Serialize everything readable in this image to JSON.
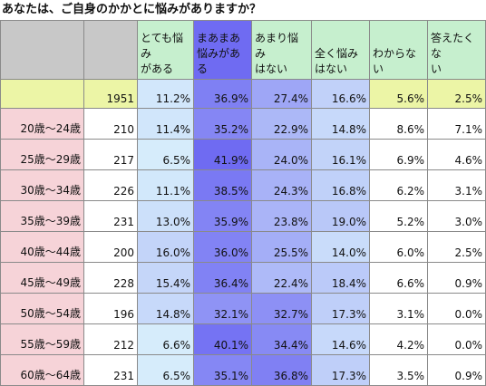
{
  "title": "あなたは、ご自身のかかとに悩みがありますか？",
  "chart_data": {
    "type": "table",
    "columns": [
      "",
      "",
      "とても悩みがある",
      "まあまあ悩みがある",
      "あまり悩みはない",
      "全く悩みはない",
      "わからない",
      "答えたくない"
    ],
    "headers": [
      {
        "label": "とても悩み\nがある",
        "highlight": false
      },
      {
        "label": "まあまあ\n悩みがあ\nる",
        "highlight": true
      },
      {
        "label": "あまり悩み\nはない",
        "highlight": false
      },
      {
        "label": "全く悩み\nはない",
        "highlight": false
      },
      {
        "label": "わからない",
        "highlight": false
      },
      {
        "label": "答えたくな\nい",
        "highlight": false
      }
    ],
    "rows": [
      {
        "label": "",
        "n": "1951",
        "values": [
          "11.2%",
          "36.9%",
          "27.4%",
          "16.6%",
          "5.6%",
          "2.5%"
        ],
        "total": true
      },
      {
        "label": "20歳～24歳",
        "n": "210",
        "values": [
          "11.4%",
          "35.2%",
          "22.9%",
          "14.8%",
          "8.6%",
          "7.1%"
        ]
      },
      {
        "label": "25歳～29歳",
        "n": "217",
        "values": [
          "6.5%",
          "41.9%",
          "24.0%",
          "16.1%",
          "6.9%",
          "4.6%"
        ]
      },
      {
        "label": "30歳～34歳",
        "n": "226",
        "values": [
          "11.1%",
          "38.5%",
          "24.3%",
          "16.8%",
          "6.2%",
          "3.1%"
        ]
      },
      {
        "label": "35歳～39歳",
        "n": "231",
        "values": [
          "13.0%",
          "35.9%",
          "23.8%",
          "19.0%",
          "5.2%",
          "3.0%"
        ]
      },
      {
        "label": "40歳～44歳",
        "n": "200",
        "values": [
          "16.0%",
          "36.0%",
          "25.5%",
          "14.0%",
          "6.0%",
          "2.5%"
        ]
      },
      {
        "label": "45歳～49歳",
        "n": "228",
        "values": [
          "15.4%",
          "36.4%",
          "22.4%",
          "18.4%",
          "6.6%",
          "0.9%"
        ]
      },
      {
        "label": "50歳～54歳",
        "n": "196",
        "values": [
          "14.8%",
          "32.1%",
          "32.7%",
          "17.3%",
          "3.1%",
          "0.0%"
        ]
      },
      {
        "label": "55歳～59歳",
        "n": "212",
        "values": [
          "6.6%",
          "40.1%",
          "34.4%",
          "14.6%",
          "4.2%",
          "0.0%"
        ]
      },
      {
        "label": "60歳～64歳",
        "n": "231",
        "values": [
          "6.5%",
          "35.1%",
          "36.8%",
          "17.3%",
          "3.5%",
          "0.9%"
        ]
      }
    ],
    "colors": {
      "header_green": "#c6efce",
      "total_yellow": "#ecf5a6",
      "age_pink": "#f6d3d8",
      "blank_gray": "#c8c8c8",
      "heat_low": "#d6ecfb",
      "heat_high": "#6f6bf2"
    },
    "grid": true
  }
}
